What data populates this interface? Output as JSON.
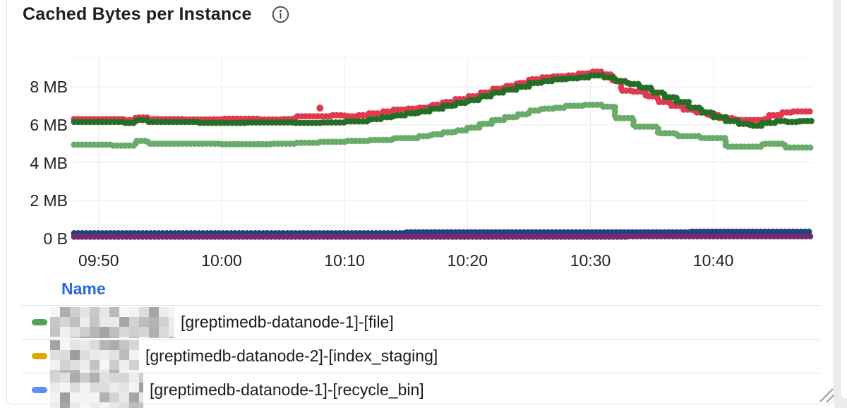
{
  "panel": {
    "title": "Cached Bytes per Instance",
    "info_icon": "info-circle-i"
  },
  "legend": {
    "header": "Name",
    "rows": [
      {
        "marker_color": "#4fa44f",
        "label": "[greptimedb-datanode-1]-[file]",
        "redacted_prefix": true
      },
      {
        "marker_color": "#dfa800",
        "label": "[greptimedb-datanode-2]-[index_staging]",
        "redacted_prefix": true
      },
      {
        "marker_color": "#5b92f0",
        "label": "[greptimedb-datanode-1]-[recycle_bin]",
        "redacted_prefix": true
      }
    ]
  },
  "chart_data": {
    "type": "scatter",
    "title": "Cached Bytes per Instance",
    "xlabel": "",
    "ylabel": "",
    "x_start_time": "09:48",
    "x_end_time": "10:48",
    "x_ticks": [
      {
        "t": 2,
        "label": "09:50"
      },
      {
        "t": 12,
        "label": "10:00"
      },
      {
        "t": 22,
        "label": "10:10"
      },
      {
        "t": 32,
        "label": "10:20"
      },
      {
        "t": 42,
        "label": "10:30"
      },
      {
        "t": 52,
        "label": "10:40"
      }
    ],
    "y_ticks": [
      {
        "v": 0,
        "label": "0 B"
      },
      {
        "v": 2,
        "label": "2 MB"
      },
      {
        "v": 4,
        "label": "4 MB"
      },
      {
        "v": 6,
        "label": "6 MB"
      },
      {
        "v": 8,
        "label": "8 MB"
      }
    ],
    "y_unit": "MB",
    "ylim": [
      0,
      9.5
    ],
    "grid": true,
    "legend_position": "bottom-table",
    "note_t_axis": "t = minutes after 09:48",
    "series": [
      {
        "name": "series-crimson",
        "color": "#e0384e",
        "points": [
          [
            0,
            6.3
          ],
          [
            4,
            6.25
          ],
          [
            5,
            6.38
          ],
          [
            6,
            6.3
          ],
          [
            9,
            6.28
          ],
          [
            12,
            6.32
          ],
          [
            15,
            6.28
          ],
          [
            17,
            6.3
          ],
          [
            18,
            6.45
          ],
          [
            21,
            6.5
          ],
          [
            22,
            6.45
          ],
          [
            23,
            6.5
          ],
          [
            24,
            6.6
          ],
          [
            25,
            6.7
          ],
          [
            26,
            6.8
          ],
          [
            27,
            6.85
          ],
          [
            28,
            6.9
          ],
          [
            29,
            7.05
          ],
          [
            30,
            7.2
          ],
          [
            31,
            7.35
          ],
          [
            32,
            7.5
          ],
          [
            33,
            7.7
          ],
          [
            34,
            7.9
          ],
          [
            35,
            8.05
          ],
          [
            36,
            8.2
          ],
          [
            37,
            8.4
          ],
          [
            38,
            8.5
          ],
          [
            39,
            8.55
          ],
          [
            40,
            8.6
          ],
          [
            41,
            8.7
          ],
          [
            42,
            8.8
          ],
          [
            43,
            8.65
          ],
          [
            43.8,
            8.3
          ],
          [
            44.5,
            7.8
          ],
          [
            45.5,
            7.75
          ],
          [
            46.5,
            7.5
          ],
          [
            47.5,
            7.2
          ],
          [
            48.5,
            7.0
          ],
          [
            49.5,
            6.8
          ],
          [
            50.5,
            6.65
          ],
          [
            51.5,
            6.5
          ],
          [
            52.5,
            6.35
          ],
          [
            53.5,
            6.3
          ],
          [
            54,
            6.25
          ],
          [
            56,
            6.3
          ],
          [
            56.5,
            6.5
          ],
          [
            57.5,
            6.65
          ],
          [
            58.5,
            6.7
          ],
          [
            60,
            6.7
          ]
        ]
      },
      {
        "name": "series-dark-green",
        "color": "#256e25",
        "points": [
          [
            0,
            6.15
          ],
          [
            4,
            6.1
          ],
          [
            5,
            6.25
          ],
          [
            6,
            6.15
          ],
          [
            10,
            6.1
          ],
          [
            14,
            6.12
          ],
          [
            18,
            6.1
          ],
          [
            20,
            6.12
          ],
          [
            22,
            6.18
          ],
          [
            24,
            6.3
          ],
          [
            25,
            6.4
          ],
          [
            26,
            6.5
          ],
          [
            27,
            6.6
          ],
          [
            28,
            6.7
          ],
          [
            29,
            6.85
          ],
          [
            30,
            7.0
          ],
          [
            31,
            7.15
          ],
          [
            32,
            7.3
          ],
          [
            33,
            7.5
          ],
          [
            34,
            7.7
          ],
          [
            35,
            7.85
          ],
          [
            36,
            8.0
          ],
          [
            37,
            8.2
          ],
          [
            38,
            8.3
          ],
          [
            39,
            8.4
          ],
          [
            40,
            8.45
          ],
          [
            41,
            8.5
          ],
          [
            42,
            8.6
          ],
          [
            43,
            8.5
          ],
          [
            44,
            8.3
          ],
          [
            45,
            8.15
          ],
          [
            46,
            7.95
          ],
          [
            47,
            7.7
          ],
          [
            48,
            7.45
          ],
          [
            49,
            7.2
          ],
          [
            50,
            6.9
          ],
          [
            51,
            6.65
          ],
          [
            52,
            6.4
          ],
          [
            53,
            6.2
          ],
          [
            54,
            6.05
          ],
          [
            55,
            5.95
          ],
          [
            56,
            6.1
          ],
          [
            57,
            6.2
          ],
          [
            58,
            6.15
          ],
          [
            59,
            6.2
          ],
          [
            60,
            6.2
          ]
        ]
      },
      {
        "name": "series-light-green",
        "color": "#69ac69",
        "points": [
          [
            0,
            4.95
          ],
          [
            3,
            4.9
          ],
          [
            5,
            5.15
          ],
          [
            6,
            5.0
          ],
          [
            12,
            4.98
          ],
          [
            16,
            5.0
          ],
          [
            18,
            5.05
          ],
          [
            20,
            5.1
          ],
          [
            22,
            5.15
          ],
          [
            24,
            5.2
          ],
          [
            26,
            5.3
          ],
          [
            28,
            5.4
          ],
          [
            29,
            5.5
          ],
          [
            30,
            5.6
          ],
          [
            31,
            5.7
          ],
          [
            32,
            5.85
          ],
          [
            33,
            6.05
          ],
          [
            34,
            6.25
          ],
          [
            35,
            6.4
          ],
          [
            36,
            6.55
          ],
          [
            37,
            6.75
          ],
          [
            38,
            6.85
          ],
          [
            39,
            6.9
          ],
          [
            40,
            7.0
          ],
          [
            41.5,
            7.05
          ],
          [
            43,
            6.95
          ],
          [
            44,
            6.35
          ],
          [
            45.5,
            5.9
          ],
          [
            47.5,
            5.55
          ],
          [
            49,
            5.4
          ],
          [
            51,
            5.3
          ],
          [
            53,
            4.85
          ],
          [
            55.5,
            4.85
          ],
          [
            56,
            5.0
          ],
          [
            57.8,
            4.8
          ],
          [
            60,
            4.8
          ]
        ]
      },
      {
        "name": "series-navy",
        "color": "#1c4382",
        "points": [
          [
            0,
            0.28
          ],
          [
            27,
            0.33
          ],
          [
            50,
            0.36
          ],
          [
            60,
            0.36
          ]
        ]
      },
      {
        "name": "series-purple",
        "color": "#732a6f",
        "points": [
          [
            0,
            0.1
          ],
          [
            45,
            0.12
          ],
          [
            60,
            0.12
          ]
        ]
      }
    ],
    "outliers": [
      {
        "series": "series-crimson",
        "color": "#e0384e",
        "t": 20,
        "value": 6.88
      }
    ]
  }
}
